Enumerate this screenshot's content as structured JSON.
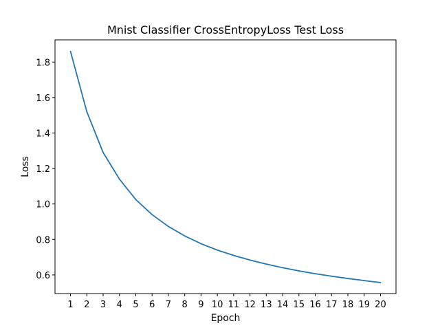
{
  "chart_data": {
    "type": "line",
    "title": "Mnist Classifier CrossEntropyLoss Test Loss",
    "xlabel": "Epoch",
    "ylabel": "Loss",
    "x": [
      1,
      2,
      3,
      4,
      5,
      6,
      7,
      8,
      9,
      10,
      11,
      12,
      13,
      14,
      15,
      16,
      17,
      18,
      19,
      20
    ],
    "x_ticks": [
      "1",
      "2",
      "3",
      "4",
      "5",
      "6",
      "7",
      "8",
      "9",
      "10",
      "11",
      "12",
      "13",
      "14",
      "15",
      "16",
      "17",
      "18",
      "19",
      "20"
    ],
    "y_ticks": [
      "0.6",
      "0.8",
      "1.0",
      "1.2",
      "1.4",
      "1.6",
      "1.8"
    ],
    "xlim": [
      0.05,
      20.95
    ],
    "ylim": [
      0.495,
      1.925
    ],
    "grid": false,
    "series": [
      {
        "color": "#1f77b4",
        "values": [
          1.86,
          1.52,
          1.29,
          1.14,
          1.025,
          0.94,
          0.873,
          0.82,
          0.776,
          0.74,
          0.71,
          0.684,
          0.661,
          0.641,
          0.623,
          0.607,
          0.593,
          0.58,
          0.568,
          0.557
        ]
      }
    ]
  }
}
